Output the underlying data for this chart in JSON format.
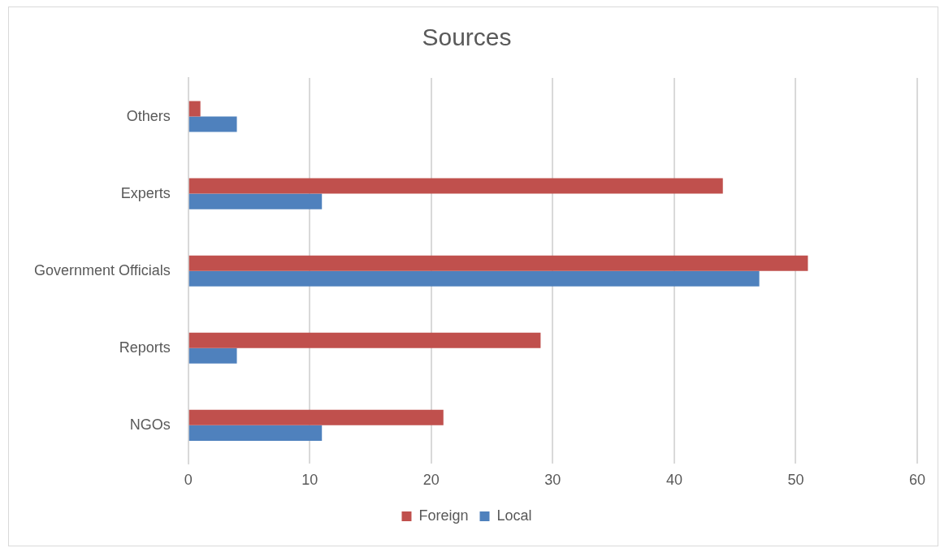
{
  "chart_data": {
    "type": "bar",
    "orientation": "horizontal",
    "title": "Sources",
    "categories": [
      "Others",
      "Experts",
      "Government Officials",
      "Reports",
      "NGOs"
    ],
    "series": [
      {
        "name": "Foreign",
        "color": "#c0504d",
        "values": [
          1,
          44,
          51,
          29,
          21
        ]
      },
      {
        "name": "Local",
        "color": "#4f81bd",
        "values": [
          4,
          11,
          47,
          4,
          11
        ]
      }
    ],
    "xlim": [
      0,
      60
    ],
    "xticks": [
      0,
      10,
      20,
      30,
      40,
      50,
      60
    ],
    "grid": "x",
    "legend": "bottom"
  }
}
